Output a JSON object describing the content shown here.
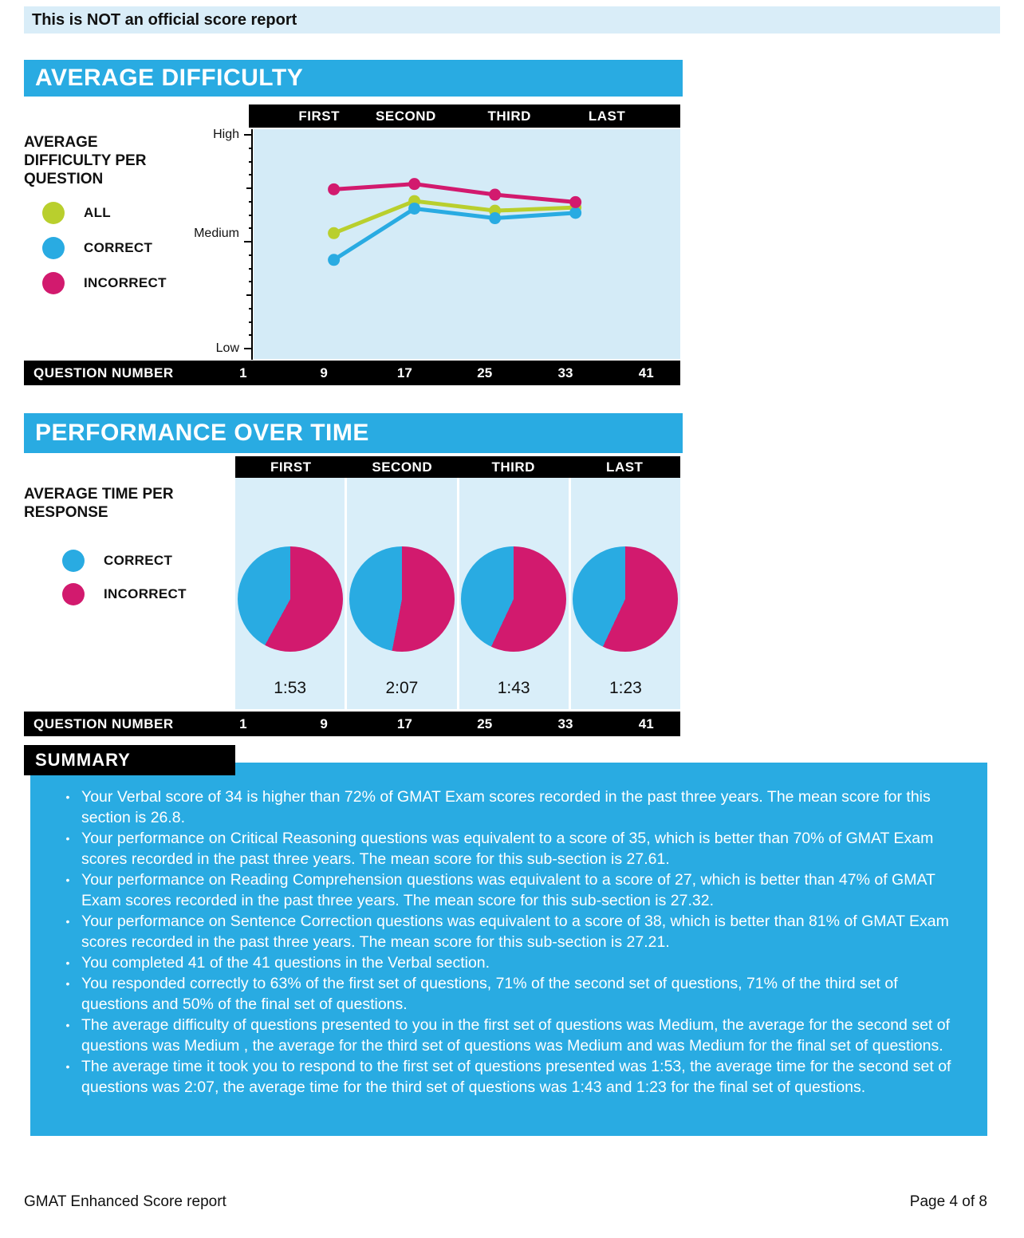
{
  "page": {
    "notice": "This is NOT an official score report",
    "footer_left": "GMAT Enhanced Score report",
    "footer_right": "Page 4 of 8"
  },
  "colors": {
    "accent_blue": "#29abe2",
    "pale_blue_strip": "#d9edf8",
    "plot_background": "#d4ebf7",
    "all_green": "#b9cf2d",
    "correct_blue": "#29abe2",
    "incorrect_pink": "#d21a6e",
    "bar_black": "#000000"
  },
  "difficulty_section": {
    "title": "AVERAGE DIFFICULTY",
    "chart_label": "AVERAGE DIFFICULTY PER QUESTION",
    "legend": [
      {
        "label": "ALL",
        "color": "#b9cf2d"
      },
      {
        "label": "CORRECT",
        "color": "#29abe2"
      },
      {
        "label": "INCORRECT",
        "color": "#d21a6e"
      }
    ],
    "set_labels": [
      "FIRST",
      "SECOND",
      "THIRD",
      "LAST"
    ],
    "y_labels": [
      "High",
      "Medium",
      "Low"
    ],
    "question_bar_label": "QUESTION NUMBER",
    "question_numbers": [
      "1",
      "9",
      "17",
      "25",
      "33",
      "41"
    ]
  },
  "time_section": {
    "title": "PERFORMANCE OVER TIME",
    "chart_label": "AVERAGE TIME PER RESPONSE",
    "legend": [
      {
        "label": "CORRECT",
        "color": "#29abe2"
      },
      {
        "label": "INCORRECT",
        "color": "#d21a6e"
      }
    ],
    "set_labels": [
      "FIRST",
      "SECOND",
      "THIRD",
      "LAST"
    ],
    "question_bar_label": "QUESTION NUMBER",
    "question_numbers": [
      "1",
      "9",
      "17",
      "25",
      "33",
      "41"
    ],
    "times": [
      "1:53",
      "2:07",
      "1:43",
      "1:23"
    ]
  },
  "summary": {
    "title": "SUMMARY",
    "bullets": [
      "Your Verbal score of 34 is higher than 72% of GMAT Exam scores recorded in the past three years. The mean score for this section is 26.8.",
      "Your performance on Critical Reasoning questions was equivalent to a score of 35, which is better than 70% of GMAT Exam scores recorded in the past three years. The mean score for this sub-section is 27.61.",
      "Your performance on Reading Comprehension questions was equivalent to a score of 27, which is better than 47% of GMAT Exam scores recorded in the past three years. The mean score for this sub-section is 27.32.",
      "Your performance on Sentence Correction questions was equivalent to a score of 38, which is better than 81% of GMAT Exam scores recorded in the past three years. The mean score for this sub-section is 27.21.",
      "You completed 41 of the 41 questions in the Verbal section.",
      "You responded correctly to 63% of the first set of questions, 71% of the second set of questions, 71% of the third set of questions and 50% of the final set of questions.",
      "The average difficulty of questions presented to you in the first set of questions was Medium, the average for the second set of questions was Medium , the average for the third set of questions was Medium and was Medium for the final set of questions.",
      "The average time it took you to respond to the first set of questions presented was 1:53, the average time for the second set of questions was 2:07, the average time for the third set of questions was 1:43 and 1:23 for the final set of questions."
    ]
  },
  "chart_data": [
    {
      "type": "line",
      "title": "AVERAGE DIFFICULTY PER QUESTION",
      "xlabel": "QUESTION NUMBER",
      "ylabel": "Difficulty",
      "x_axis_ticks": [
        1,
        9,
        17,
        25,
        33,
        41
      ],
      "x_sets": [
        "FIRST",
        "SECOND",
        "THIRD",
        "LAST"
      ],
      "x_set_question_centers": [
        10,
        18,
        26,
        34
      ],
      "y_scale": {
        "Low": 1,
        "Medium": 2,
        "High": 3
      },
      "ylim": [
        1,
        3
      ],
      "grid": false,
      "legend_position": "left",
      "series": [
        {
          "name": "ALL",
          "color": "#b9cf2d",
          "values": [
            2.08,
            2.38,
            2.29,
            2.32
          ]
        },
        {
          "name": "CORRECT",
          "color": "#29abe2",
          "values": [
            1.83,
            2.31,
            2.22,
            2.27
          ]
        },
        {
          "name": "INCORRECT",
          "color": "#d21a6e",
          "values": [
            2.49,
            2.54,
            2.44,
            2.37
          ]
        }
      ]
    },
    {
      "type": "pie",
      "title": "AVERAGE TIME PER RESPONSE",
      "legend_position": "left",
      "slices": [
        {
          "set": "FIRST",
          "incorrect_pct": 58,
          "correct_pct": 42,
          "avg_time": "1:53"
        },
        {
          "set": "SECOND",
          "incorrect_pct": 53,
          "correct_pct": 47,
          "avg_time": "2:07"
        },
        {
          "set": "THIRD",
          "incorrect_pct": 57,
          "correct_pct": 43,
          "avg_time": "1:43"
        },
        {
          "set": "LAST",
          "incorrect_pct": 57,
          "correct_pct": 43,
          "avg_time": "1:23"
        }
      ]
    }
  ]
}
